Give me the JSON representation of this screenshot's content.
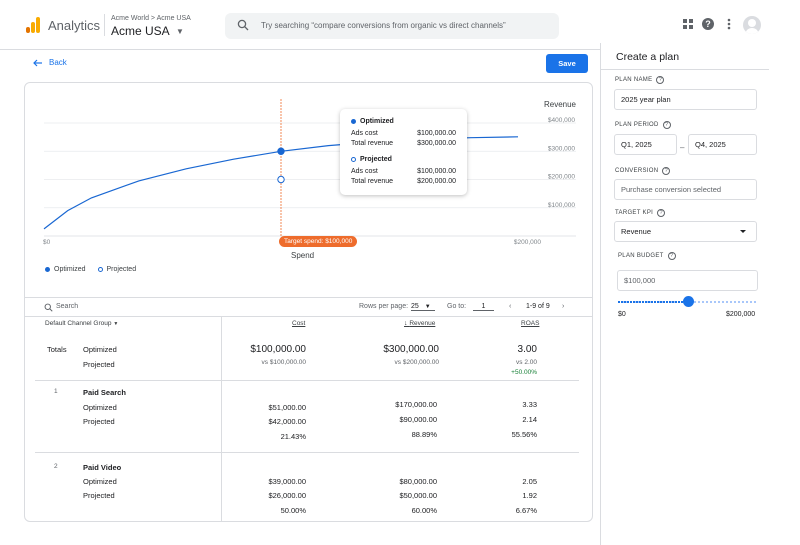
{
  "header": {
    "app_name": "Analytics",
    "breadcrumb": "Acme World  >  Acme USA",
    "account": "Acme USA",
    "search_placeholder": "Try searching “compare conversions from organic vs direct channels”"
  },
  "toolbar": {
    "back_label": "Back",
    "save_label": "Save"
  },
  "chart_data": {
    "type": "line",
    "ylabel": "Revenue",
    "xlabel": "Spend",
    "x_ticks": [
      "$0",
      "$200,000"
    ],
    "y_ticks": [
      "$100,000",
      "$200,000",
      "$300,000",
      "$400,000"
    ],
    "xlim": [
      0,
      200000
    ],
    "ylim": [
      0,
      400000
    ],
    "grid": true,
    "legend_placement": "bottom-left",
    "series": [
      {
        "name": "Optimized",
        "x": [
          0,
          10000,
          20000,
          40000,
          60000,
          80000,
          100000,
          120000,
          140000,
          160000,
          180000,
          200000
        ],
        "values": [
          25000,
          90000,
          135000,
          195000,
          238000,
          272000,
          300000,
          320000,
          333000,
          342000,
          348000,
          351000
        ]
      }
    ],
    "points": [
      {
        "series": "Optimized",
        "x": 100000,
        "y": 300000,
        "style": "filled"
      },
      {
        "series": "Projected",
        "x": 100000,
        "y": 200000,
        "style": "hollow"
      }
    ],
    "target_label": "Target spend: $100,000",
    "target_x": 100000
  },
  "tooltip": {
    "optimized": {
      "title": "Optimized",
      "ads_cost_label": "Ads cost",
      "ads_cost": "$100,000.00",
      "revenue_label": "Total revenue",
      "revenue": "$300,000.00"
    },
    "projected": {
      "title": "Projected",
      "ads_cost_label": "Ads cost",
      "ads_cost": "$100,000.00",
      "revenue_label": "Total revenue",
      "revenue": "$200,000.00"
    }
  },
  "legend": {
    "optimized": "Optimized",
    "projected": "Projected"
  },
  "table_toolbar": {
    "search_placeholder": "Search",
    "rows_per_page_label": "Rows per page:",
    "rows_per_page": "25",
    "goto_label": "Go to:",
    "goto_value": "1",
    "range": "1-9 of 9"
  },
  "table": {
    "dimension_header": "Default Channel Group",
    "columns": [
      "Cost",
      "Revenue",
      "ROAS"
    ],
    "totals": {
      "label": "Totals",
      "optimized_label": "Optimized",
      "projected_label": "Projected",
      "cost": "$100,000.00",
      "cost_vs": "vs $100,000.00",
      "revenue": "$300,000.00",
      "revenue_vs": "vs $200,000.00",
      "roas": "3.00",
      "roas_vs": "vs 2.00",
      "roas_change": "+50.00%"
    },
    "rows": [
      {
        "index": "1",
        "name": "Paid Search",
        "optimized_label": "Optimized",
        "projected_label": "Projected",
        "cost_opt": "$51,000.00",
        "cost_proj": "$42,000.00",
        "cost_change": "21.43%",
        "rev_opt": "$170,000.00",
        "rev_proj": "$90,000.00",
        "rev_change": "88.89%",
        "roas_opt": "3.33",
        "roas_proj": "2.14",
        "roas_change": "55.56%"
      },
      {
        "index": "2",
        "name": "Paid Video",
        "optimized_label": "Optimized",
        "projected_label": "Projected",
        "cost_opt": "$39,000.00",
        "cost_proj": "$26,000.00",
        "cost_change": "50.00%",
        "rev_opt": "$80,000.00",
        "rev_proj": "$50,000.00",
        "rev_change": "60.00%",
        "roas_opt": "2.05",
        "roas_proj": "1.92",
        "roas_change": "6.67%"
      }
    ]
  },
  "panel": {
    "title": "Create a plan",
    "plan_name_label": "PLAN NAME",
    "plan_name": "2025 year plan",
    "plan_period_label": "PLAN PERIOD",
    "period_start": "Q1, 2025",
    "period_sep": "–",
    "period_end": "Q4, 2025",
    "conversion_label": "CONVERSION",
    "conversion_placeholder": "Purchase conversion selected",
    "target_kpi_label": "TARGET KPI",
    "target_kpi": "Revenue",
    "budget_label": "PLAN BUDGET",
    "budget_placeholder": "$100,000",
    "slider_min": "$0",
    "slider_max": "$200,000",
    "slider_value_fraction": 0.5
  },
  "colors": {
    "accent": "#1a73e8",
    "series": "#1967d2",
    "target": "#ee6c2c",
    "positive": "#188038"
  }
}
